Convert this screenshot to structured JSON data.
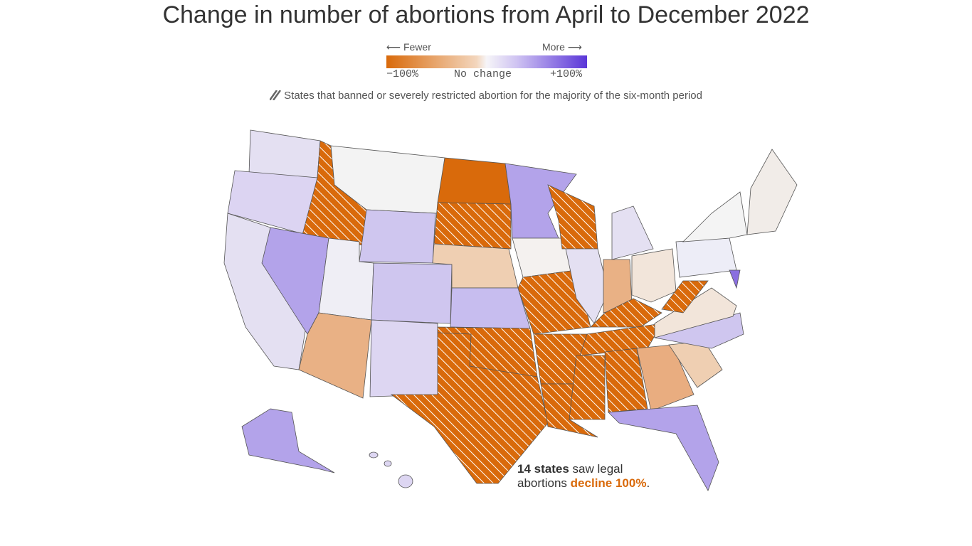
{
  "header": {
    "title": "Change in number of abortions from April to December 2022"
  },
  "legend": {
    "fewer": "⟵ Fewer",
    "more": "More ⟶",
    "min_label": "−100%",
    "mid_label": "No change",
    "max_label": "+100%",
    "hatch_note": "States that banned or severely restricted abortion for the majority of the six-month period"
  },
  "annotation": {
    "bold": "14 states",
    "text1": " saw legal",
    "text2": "abortions ",
    "highlight": "decline 100%",
    "end": "."
  }
}
